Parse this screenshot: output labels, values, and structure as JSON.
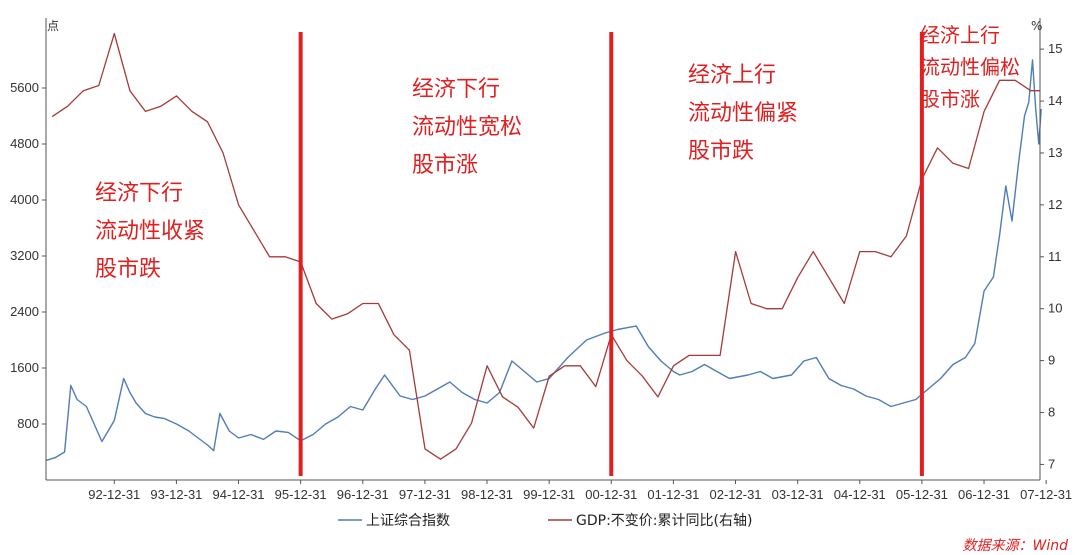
{
  "chart_data": {
    "type": "line",
    "title": "",
    "xlabel": "",
    "left_axis": {
      "unit": "点",
      "ticks": [
        800,
        1600,
        2400,
        3200,
        4000,
        4800,
        5600
      ],
      "range": [
        0,
        6600
      ]
    },
    "right_axis": {
      "unit": "%",
      "ticks": [
        7,
        8,
        9,
        10,
        11,
        12,
        13,
        14,
        15
      ],
      "range": [
        6.7,
        15.6
      ]
    },
    "x_range": [
      1991.9,
      2007.9
    ],
    "x_tick_labels": [
      "92-12-31",
      "93-12-31",
      "94-12-31",
      "95-12-31",
      "96-12-31",
      "97-12-31",
      "98-12-31",
      "99-12-31",
      "00-12-31",
      "01-12-31",
      "02-12-31",
      "03-12-31",
      "04-12-31",
      "05-12-31",
      "06-12-31",
      "07-12-31"
    ],
    "x_tick_years": [
      1992.999,
      1993.999,
      1994.999,
      1995.999,
      1996.999,
      1997.999,
      1998.999,
      1999.999,
      2000.999,
      2001.999,
      2002.999,
      2003.999,
      2004.999,
      2005.999,
      2006.999,
      2007.999
    ],
    "series": [
      {
        "name": "上证综合指数",
        "axis": "left",
        "color": "#4f7db5",
        "points": [
          [
            1991.9,
            280
          ],
          [
            1992.05,
            320
          ],
          [
            1992.2,
            400
          ],
          [
            1992.3,
            1350
          ],
          [
            1992.4,
            1150
          ],
          [
            1992.55,
            1050
          ],
          [
            1992.65,
            850
          ],
          [
            1992.8,
            550
          ],
          [
            1992.9,
            700
          ],
          [
            1993.0,
            850
          ],
          [
            1993.15,
            1450
          ],
          [
            1993.25,
            1250
          ],
          [
            1993.35,
            1100
          ],
          [
            1993.5,
            950
          ],
          [
            1993.65,
            900
          ],
          [
            1993.8,
            880
          ],
          [
            1994.0,
            800
          ],
          [
            1994.2,
            700
          ],
          [
            1994.35,
            600
          ],
          [
            1994.5,
            500
          ],
          [
            1994.6,
            420
          ],
          [
            1994.7,
            950
          ],
          [
            1994.85,
            700
          ],
          [
            1995.0,
            600
          ],
          [
            1995.2,
            650
          ],
          [
            1995.4,
            580
          ],
          [
            1995.6,
            700
          ],
          [
            1995.8,
            680
          ],
          [
            1996.0,
            560
          ],
          [
            1996.2,
            650
          ],
          [
            1996.4,
            800
          ],
          [
            1996.6,
            900
          ],
          [
            1996.8,
            1050
          ],
          [
            1997.0,
            1000
          ],
          [
            1997.2,
            1300
          ],
          [
            1997.35,
            1500
          ],
          [
            1997.6,
            1200
          ],
          [
            1997.8,
            1150
          ],
          [
            1998.0,
            1200
          ],
          [
            1998.2,
            1300
          ],
          [
            1998.4,
            1400
          ],
          [
            1998.6,
            1250
          ],
          [
            1998.8,
            1150
          ],
          [
            1999.0,
            1100
          ],
          [
            1999.2,
            1250
          ],
          [
            1999.4,
            1700
          ],
          [
            1999.6,
            1550
          ],
          [
            1999.8,
            1400
          ],
          [
            2000.0,
            1450
          ],
          [
            2000.3,
            1750
          ],
          [
            2000.6,
            2000
          ],
          [
            2000.9,
            2100
          ],
          [
            2001.1,
            2150
          ],
          [
            2001.4,
            2200
          ],
          [
            2001.6,
            1900
          ],
          [
            2001.8,
            1700
          ],
          [
            2002.0,
            1550
          ],
          [
            2002.1,
            1500
          ],
          [
            2002.3,
            1550
          ],
          [
            2002.5,
            1650
          ],
          [
            2002.7,
            1550
          ],
          [
            2002.9,
            1450
          ],
          [
            2003.2,
            1500
          ],
          [
            2003.4,
            1550
          ],
          [
            2003.6,
            1450
          ],
          [
            2003.9,
            1500
          ],
          [
            2004.1,
            1700
          ],
          [
            2004.3,
            1750
          ],
          [
            2004.5,
            1450
          ],
          [
            2004.7,
            1350
          ],
          [
            2004.9,
            1300
          ],
          [
            2005.1,
            1200
          ],
          [
            2005.3,
            1150
          ],
          [
            2005.5,
            1050
          ],
          [
            2005.7,
            1100
          ],
          [
            2005.9,
            1150
          ],
          [
            2006.1,
            1300
          ],
          [
            2006.3,
            1450
          ],
          [
            2006.5,
            1650
          ],
          [
            2006.7,
            1750
          ],
          [
            2006.85,
            1950
          ],
          [
            2007.0,
            2700
          ],
          [
            2007.15,
            2900
          ],
          [
            2007.25,
            3500
          ],
          [
            2007.35,
            4200
          ],
          [
            2007.45,
            3700
          ],
          [
            2007.55,
            4500
          ],
          [
            2007.65,
            5200
          ],
          [
            2007.72,
            5400
          ],
          [
            2007.78,
            6000
          ],
          [
            2007.83,
            5300
          ],
          [
            2007.88,
            4800
          ],
          [
            2007.92,
            5300
          ]
        ]
      },
      {
        "name": "GDP:不变价:累计同比(右轴)",
        "axis": "right",
        "color": "#a63a3a",
        "points": [
          [
            1992.0,
            13.7
          ],
          [
            1992.25,
            13.9
          ],
          [
            1992.5,
            14.2
          ],
          [
            1992.75,
            14.3
          ],
          [
            1993.0,
            15.3
          ],
          [
            1993.25,
            14.2
          ],
          [
            1993.5,
            13.8
          ],
          [
            1993.75,
            13.9
          ],
          [
            1994.0,
            14.1
          ],
          [
            1994.25,
            13.8
          ],
          [
            1994.5,
            13.6
          ],
          [
            1994.75,
            13.0
          ],
          [
            1995.0,
            12.0
          ],
          [
            1995.25,
            11.5
          ],
          [
            1995.5,
            11.0
          ],
          [
            1995.75,
            11.0
          ],
          [
            1996.0,
            10.9
          ],
          [
            1996.25,
            10.1
          ],
          [
            1996.5,
            9.8
          ],
          [
            1996.75,
            9.9
          ],
          [
            1997.0,
            10.1
          ],
          [
            1997.25,
            10.1
          ],
          [
            1997.5,
            9.5
          ],
          [
            1997.75,
            9.2
          ],
          [
            1998.0,
            7.3
          ],
          [
            1998.25,
            7.1
          ],
          [
            1998.5,
            7.3
          ],
          [
            1998.75,
            7.8
          ],
          [
            1999.0,
            8.9
          ],
          [
            1999.25,
            8.3
          ],
          [
            1999.5,
            8.1
          ],
          [
            1999.75,
            7.7
          ],
          [
            2000.0,
            8.7
          ],
          [
            2000.25,
            8.9
          ],
          [
            2000.5,
            8.9
          ],
          [
            2000.75,
            8.5
          ],
          [
            2001.0,
            9.5
          ],
          [
            2001.25,
            9.0
          ],
          [
            2001.5,
            8.7
          ],
          [
            2001.75,
            8.3
          ],
          [
            2002.0,
            8.9
          ],
          [
            2002.25,
            9.1
          ],
          [
            2002.5,
            9.1
          ],
          [
            2002.75,
            9.1
          ],
          [
            2003.0,
            11.1
          ],
          [
            2003.25,
            10.1
          ],
          [
            2003.5,
            10.0
          ],
          [
            2003.75,
            10.0
          ],
          [
            2004.0,
            10.6
          ],
          [
            2004.25,
            11.1
          ],
          [
            2004.5,
            10.6
          ],
          [
            2004.75,
            10.1
          ],
          [
            2005.0,
            11.1
          ],
          [
            2005.25,
            11.1
          ],
          [
            2005.5,
            11.0
          ],
          [
            2005.75,
            11.4
          ],
          [
            2006.0,
            12.5
          ],
          [
            2006.25,
            13.1
          ],
          [
            2006.5,
            12.8
          ],
          [
            2006.75,
            12.7
          ],
          [
            2007.0,
            13.8
          ],
          [
            2007.25,
            14.4
          ],
          [
            2007.5,
            14.4
          ],
          [
            2007.75,
            14.2
          ],
          [
            2007.9,
            14.2
          ]
        ]
      }
    ],
    "phase_dividers": [
      1995.999,
      2000.999,
      2005.999
    ],
    "annotations": [
      {
        "lines": [
          "经济下行",
          "流动性收紧",
          "股市跌"
        ]
      },
      {
        "lines": [
          "经济下行",
          "流动性宽松",
          "股市涨"
        ]
      },
      {
        "lines": [
          "经济上行",
          "流动性偏紧",
          "股市跌"
        ]
      },
      {
        "lines": [
          "经济上行",
          "流动性偏松",
          "股市涨"
        ]
      }
    ],
    "legend": {
      "placement": "bottom"
    },
    "source": "数据来源：Wind"
  }
}
